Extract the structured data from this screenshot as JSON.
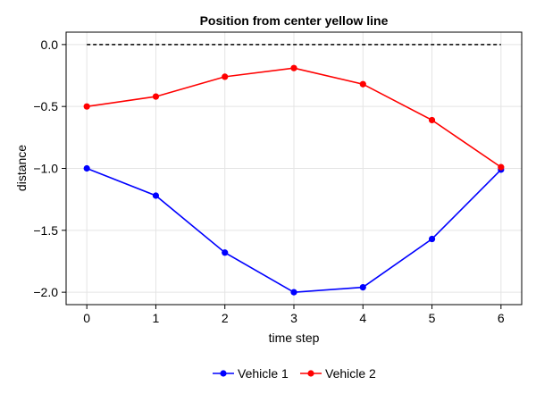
{
  "chart_data": {
    "type": "line",
    "title": "Position from center yellow line",
    "xlabel": "time step",
    "ylabel": "distance",
    "xlim": [
      -0.3,
      6.3
    ],
    "ylim": [
      -2.1,
      0.1
    ],
    "xticks": [
      0,
      1,
      2,
      3,
      4,
      5,
      6
    ],
    "yticks": [
      0.0,
      -0.5,
      -1.0,
      -1.5,
      -2.0
    ],
    "ytick_labels": [
      "0.0",
      "−0.5",
      "−1.0",
      "−1.5",
      "−2.0"
    ],
    "grid": true,
    "legend_position": "bottom-center",
    "x": [
      0,
      1,
      2,
      3,
      4,
      5,
      6
    ],
    "series": [
      {
        "name": "Vehicle 1",
        "color": "#0000ff",
        "values": [
          -1.0,
          -1.22,
          -1.68,
          -2.0,
          -1.96,
          -1.57,
          -1.01
        ]
      },
      {
        "name": "Vehicle 2",
        "color": "#ff0000",
        "values": [
          -0.5,
          -0.42,
          -0.26,
          -0.19,
          -0.32,
          -0.61,
          -0.99
        ]
      }
    ],
    "reference_line": {
      "y": 0.0,
      "style": "dashed",
      "color": "#000000"
    }
  }
}
